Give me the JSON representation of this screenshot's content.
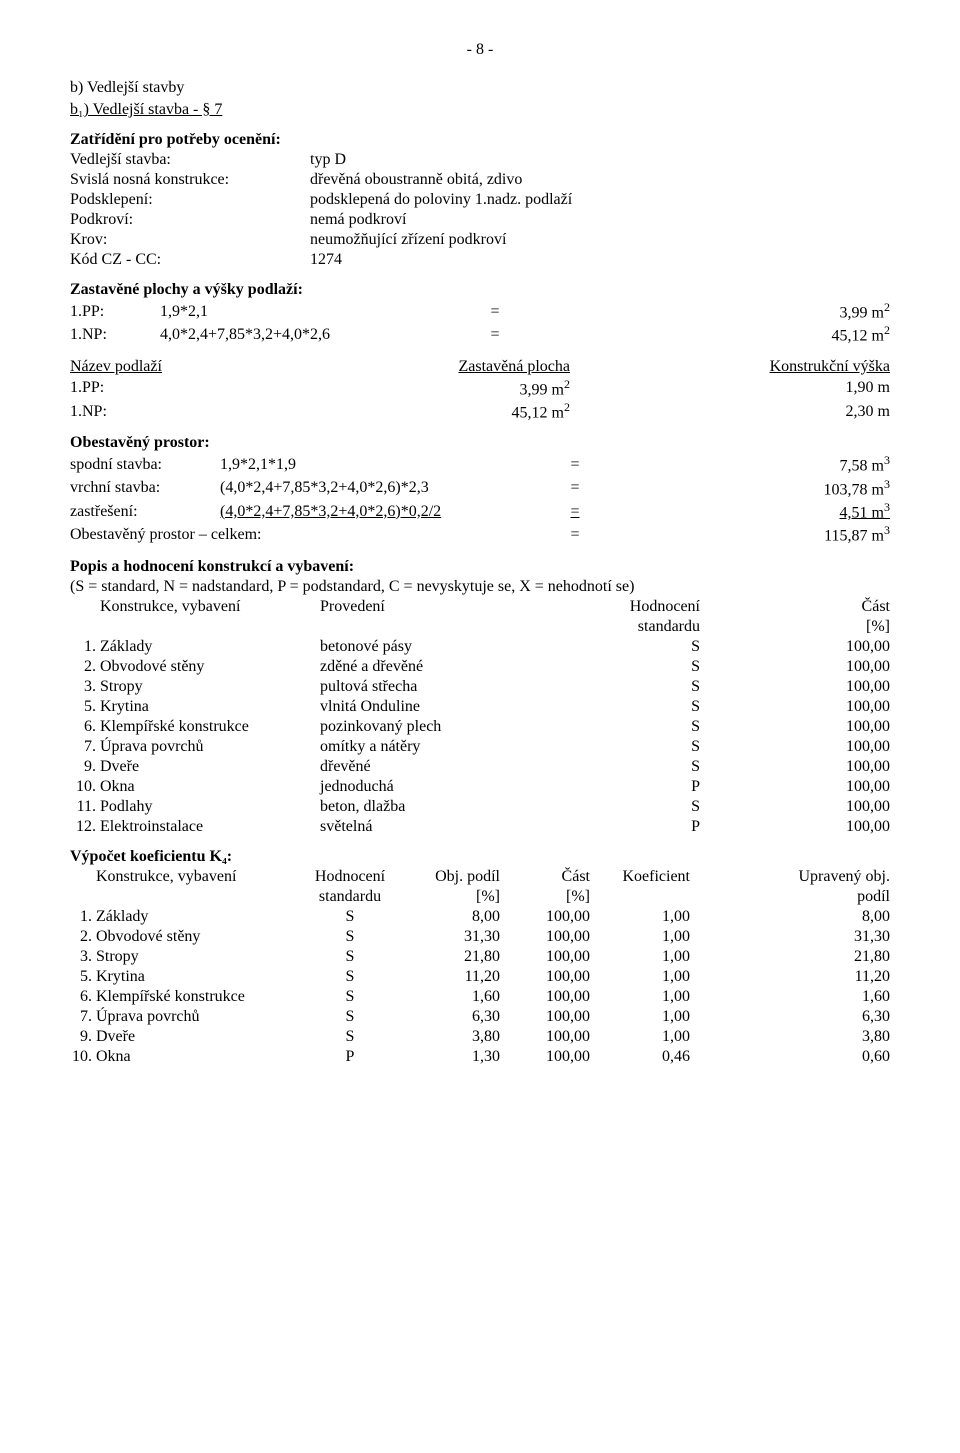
{
  "page_number": "- 8 -",
  "section_b": "b) Vedlejší stavby",
  "section_b1": "b₁) Vedlejší stavba - § 7",
  "zatr_heading": "Zatřídění pro potřeby ocenění:",
  "kv": {
    "r1_l": "Vedlejší stavba:",
    "r1_v": "typ D",
    "r2_l": "Svislá nosná konstrukce:",
    "r2_v": "dřevěná oboustranně obitá, zdivo",
    "r3_l": "Podsklepení:",
    "r3_v": "podsklepená do poloviny 1.nadz. podlaží",
    "r4_l": "Podkroví:",
    "r4_v": "nemá podkroví",
    "r5_l": "Krov:",
    "r5_v": "neumožňující zřízení podkroví",
    "r6_l": "Kód CZ - CC:",
    "r6_v": "1274"
  },
  "zp_heading": "Zastavěné plochy a výšky podlaží:",
  "zp": {
    "r1_l": "1.PP:",
    "r1_f": "1,9*2,1",
    "r1_eq": "=",
    "r1_v": "3,99 m",
    "r2_l": "1.NP:",
    "r2_f": "4,0*2,4+7,85*3,2+4,0*2,6",
    "r2_eq": "=",
    "r2_v": "45,12 m"
  },
  "np_hdr": {
    "c1": "Název podlaží",
    "c2": "Zastavěná plocha",
    "c3": "Konstrukční výška"
  },
  "np": {
    "r1_l": "1.PP:",
    "r1_a": "3,99 m",
    "r1_h": "1,90 m",
    "r2_l": "1.NP:",
    "r2_a": "45,12 m",
    "r2_h": "2,30 m"
  },
  "op_heading": "Obestavěný prostor:",
  "op": {
    "r1_l": "spodní stavba:",
    "r1_f": "1,9*2,1*1,9",
    "r1_eq": "=",
    "r1_v": "7,58 m",
    "r2_l": "vrchní stavba:",
    "r2_f": "(4,0*2,4+7,85*3,2+4,0*2,6)*2,3",
    "r2_eq": "=",
    "r2_v": "103,78 m",
    "r3_l": "zastřešení:",
    "r3_f": "(4,0*2,4+7,85*3,2+4,0*2,6)*0,2/2",
    "r3_eq": "=",
    "r3_v": "4,51 m",
    "r4_l": "Obestavěný prostor – celkem:",
    "r4_eq": "=",
    "r4_v": "115,87 m"
  },
  "popis_heading": "Popis a hodnocení konstrukcí a vybavení:",
  "popis_note": "(S = standard, N = nadstandard, P = podstandard, C = nevyskytuje se, X = nehodnotí se)",
  "kon_hdr": {
    "c1": "Konstrukce, vybavení",
    "c2": "Provedení",
    "c3": "Hodnocení",
    "c3b": "standardu",
    "c4": "Část",
    "c4b": "[%]"
  },
  "kon_rows": [
    {
      "n": "1.",
      "name": "Základy",
      "prov": "betonové pásy",
      "hod": "S",
      "cast": "100,00"
    },
    {
      "n": "2.",
      "name": "Obvodové stěny",
      "prov": "zděné a dřevěné",
      "hod": "S",
      "cast": "100,00"
    },
    {
      "n": "3.",
      "name": "Stropy",
      "prov": "pultová střecha",
      "hod": "S",
      "cast": "100,00"
    },
    {
      "n": "5.",
      "name": "Krytina",
      "prov": "vlnitá Onduline",
      "hod": "S",
      "cast": "100,00"
    },
    {
      "n": "6.",
      "name": "Klempířské konstrukce",
      "prov": "pozinkovaný plech",
      "hod": "S",
      "cast": "100,00"
    },
    {
      "n": "7.",
      "name": "Úprava povrchů",
      "prov": "omítky a nátěry",
      "hod": "S",
      "cast": "100,00"
    },
    {
      "n": "9.",
      "name": "Dveře",
      "prov": "dřevěné",
      "hod": "S",
      "cast": "100,00"
    },
    {
      "n": "10.",
      "name": "Okna",
      "prov": "jednoduchá",
      "hod": "P",
      "cast": "100,00"
    },
    {
      "n": "11.",
      "name": "Podlahy",
      "prov": "beton, dlažba",
      "hod": "S",
      "cast": "100,00"
    },
    {
      "n": "12.",
      "name": "Elektroinstalace",
      "prov": "světelná",
      "hod": "P",
      "cast": "100,00"
    }
  ],
  "k4_heading": "Výpočet koeficientu K₄:",
  "k4_hdr": {
    "c1": "Konstrukce, vybavení",
    "c2": "Hodnocení",
    "c2b": "standardu",
    "c3": "Obj. podíl",
    "c3b": "[%]",
    "c4": "Část",
    "c4b": "[%]",
    "c5": "Koeficient",
    "c6": "Upravený obj.",
    "c6b": "podíl"
  },
  "k4_rows": [
    {
      "n": "1.",
      "name": "Základy",
      "hod": "S",
      "op": "8,00",
      "cast": "100,00",
      "k": "1,00",
      "up": "8,00"
    },
    {
      "n": "2.",
      "name": "Obvodové stěny",
      "hod": "S",
      "op": "31,30",
      "cast": "100,00",
      "k": "1,00",
      "up": "31,30"
    },
    {
      "n": "3.",
      "name": "Stropy",
      "hod": "S",
      "op": "21,80",
      "cast": "100,00",
      "k": "1,00",
      "up": "21,80"
    },
    {
      "n": "5.",
      "name": "Krytina",
      "hod": "S",
      "op": "11,20",
      "cast": "100,00",
      "k": "1,00",
      "up": "11,20"
    },
    {
      "n": "6.",
      "name": "Klempířské konstrukce",
      "hod": "S",
      "op": "1,60",
      "cast": "100,00",
      "k": "1,00",
      "up": "1,60"
    },
    {
      "n": "7.",
      "name": "Úprava povrchů",
      "hod": "S",
      "op": "6,30",
      "cast": "100,00",
      "k": "1,00",
      "up": "6,30"
    },
    {
      "n": "9.",
      "name": "Dveře",
      "hod": "S",
      "op": "3,80",
      "cast": "100,00",
      "k": "1,00",
      "up": "3,80"
    },
    {
      "n": "10.",
      "name": "Okna",
      "hod": "P",
      "op": "1,30",
      "cast": "100,00",
      "k": "0,46",
      "up": "0,60"
    }
  ]
}
